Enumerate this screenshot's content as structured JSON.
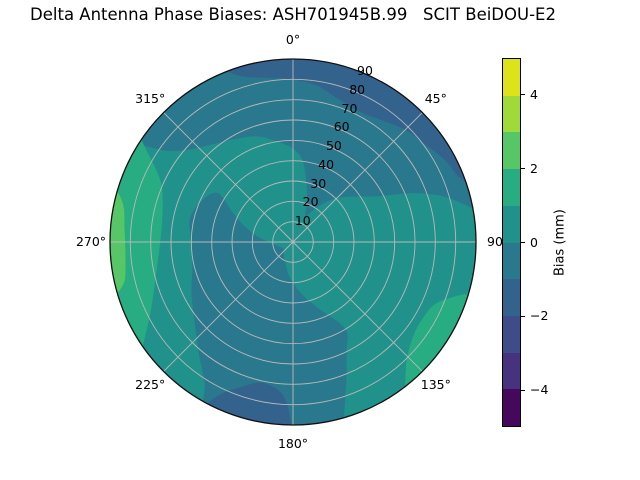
{
  "chart_data": {
    "type": "polar_contour",
    "title": "Delta Antenna Phase Biases: ASH701945B.99   SCIT BeiDOU-E2",
    "coordinate_note": "azimuth degrees clockwise from North at top; radius = zenith angle 0-90",
    "r_max": 90,
    "r_ticks": [
      10,
      20,
      30,
      40,
      50,
      60,
      70,
      80,
      90
    ],
    "r_label_azimuth_deg": 22.5,
    "theta_ticks": [
      {
        "label": "0°",
        "az": 0
      },
      {
        "label": "45°",
        "az": 45
      },
      {
        "label": "90",
        "az": 90
      },
      {
        "label": "135°",
        "az": 135
      },
      {
        "label": "180°",
        "az": 180
      },
      {
        "label": "225°",
        "az": 225
      },
      {
        "label": "270°",
        "az": 270
      },
      {
        "label": "315°",
        "az": 315
      }
    ],
    "colorbar": {
      "label": "Bias (mm)",
      "range": [
        -5,
        5
      ],
      "ticks": [
        4,
        2,
        0,
        -2,
        -4
      ],
      "bands_top_to_bottom": [
        {
          "range": [
            4,
            5
          ],
          "color": "#dde318"
        },
        {
          "range": [
            3,
            4
          ],
          "color": "#9fda3a"
        },
        {
          "range": [
            2,
            3
          ],
          "color": "#56c667"
        },
        {
          "range": [
            1,
            2
          ],
          "color": "#27ad81"
        },
        {
          "range": [
            0,
            1
          ],
          "color": "#21918c"
        },
        {
          "range": [
            -1,
            0
          ],
          "color": "#2a788e"
        },
        {
          "range": [
            -2,
            -1
          ],
          "color": "#33638d"
        },
        {
          "range": [
            -3,
            -2
          ],
          "color": "#3e4c8a"
        },
        {
          "range": [
            -4,
            -3
          ],
          "color": "#46327e"
        },
        {
          "range": [
            -5,
            -4
          ],
          "color": "#46085c"
        }
      ]
    },
    "base_band": {
      "range": [
        0,
        1
      ],
      "color": "#21918c"
    },
    "regions": [
      {
        "name": "steel-top-annulus",
        "band": [
          -1,
          0
        ],
        "color": "#2a788e",
        "pts": [
          [
            303,
            95
          ],
          [
            315,
            95
          ],
          [
            327,
            95
          ],
          [
            339,
            95
          ],
          [
            351,
            95
          ],
          [
            3,
            95
          ],
          [
            15,
            95
          ],
          [
            27,
            95
          ],
          [
            39,
            95
          ],
          [
            51,
            95
          ],
          [
            63,
            95
          ],
          [
            75,
            95
          ],
          [
            82,
            95
          ],
          [
            78,
            87
          ],
          [
            73,
            77
          ],
          [
            68,
            64
          ],
          [
            62,
            48
          ],
          [
            56,
            40
          ],
          [
            48,
            33
          ],
          [
            40,
            26
          ],
          [
            32,
            18
          ],
          [
            26,
            14
          ],
          [
            20,
            20
          ],
          [
            14,
            28
          ],
          [
            7,
            40
          ],
          [
            0,
            46
          ],
          [
            351,
            50
          ],
          [
            341,
            55
          ],
          [
            331,
            58
          ],
          [
            321,
            62
          ],
          [
            311,
            69
          ],
          [
            305,
            79
          ]
        ]
      },
      {
        "name": "steel-southwest-south",
        "band": [
          -1,
          0
        ],
        "color": "#2a788e",
        "pts": [
          [
            303,
            44
          ],
          [
            295,
            49
          ],
          [
            283,
            52
          ],
          [
            270,
            50
          ],
          [
            256,
            51
          ],
          [
            243,
            56
          ],
          [
            230,
            63
          ],
          [
            220,
            72
          ],
          [
            212,
            82
          ],
          [
            207,
            95
          ],
          [
            196,
            95
          ],
          [
            185,
            95
          ],
          [
            174,
            95
          ],
          [
            166,
            95
          ],
          [
            160,
            76
          ],
          [
            154,
            60
          ],
          [
            149,
            50
          ],
          [
            160,
            34
          ],
          [
            172,
            25
          ],
          [
            186,
            17
          ],
          [
            200,
            11
          ],
          [
            214,
            8
          ],
          [
            228,
            6
          ],
          [
            242,
            6
          ],
          [
            256,
            8
          ],
          [
            268,
            11
          ],
          [
            278,
            17
          ],
          [
            288,
            25
          ],
          [
            296,
            33
          ]
        ]
      },
      {
        "name": "navy-top-band",
        "band": [
          -2,
          -1
        ],
        "color": "#33638d",
        "pts": [
          [
            337,
            95
          ],
          [
            348,
            95
          ],
          [
            359,
            95
          ],
          [
            10,
            95
          ],
          [
            21,
            95
          ],
          [
            32,
            95
          ],
          [
            43,
            95
          ],
          [
            54,
            95
          ],
          [
            65,
            95
          ],
          [
            73,
            95
          ],
          [
            69,
            88
          ],
          [
            62,
            85
          ],
          [
            54,
            81
          ],
          [
            45,
            78
          ],
          [
            36,
            74
          ],
          [
            27,
            72
          ],
          [
            17,
            74
          ],
          [
            8,
            78
          ],
          [
            359,
            80
          ],
          [
            350,
            82
          ],
          [
            342,
            86
          ]
        ]
      },
      {
        "name": "navy-bottom-blob",
        "band": [
          -2,
          -1
        ],
        "color": "#33638d",
        "pts": [
          [
            181,
            95
          ],
          [
            190,
            95
          ],
          [
            199,
            95
          ],
          [
            208,
            95
          ],
          [
            206,
            84
          ],
          [
            200,
            76
          ],
          [
            193,
            71
          ],
          [
            186,
            73
          ],
          [
            182,
            80
          ]
        ]
      },
      {
        "name": "green-west-band",
        "band": [
          1,
          2
        ],
        "color": "#27ad81",
        "pts": [
          [
            234,
            95
          ],
          [
            247,
            95
          ],
          [
            260,
            95
          ],
          [
            273,
            95
          ],
          [
            286,
            95
          ],
          [
            297,
            95
          ],
          [
            305,
            95
          ],
          [
            302,
            85
          ],
          [
            295,
            72
          ],
          [
            287,
            67
          ],
          [
            277,
            65
          ],
          [
            266,
            66
          ],
          [
            255,
            70
          ],
          [
            246,
            76
          ],
          [
            239,
            84
          ]
        ]
      },
      {
        "name": "green-bright-west-sliver",
        "band": [
          2,
          3
        ],
        "color": "#56c667",
        "pts": [
          [
            253,
            95
          ],
          [
            262,
            95
          ],
          [
            272,
            95
          ],
          [
            281,
            95
          ],
          [
            288,
            95
          ],
          [
            283,
            86
          ],
          [
            274,
            83
          ],
          [
            263,
            83
          ],
          [
            256,
            86
          ]
        ]
      },
      {
        "name": "green-southeast-patch",
        "band": [
          1,
          2
        ],
        "color": "#27ad81",
        "pts": [
          [
            106,
            95
          ],
          [
            118,
            95
          ],
          [
            130,
            95
          ],
          [
            143,
            95
          ],
          [
            138,
            83
          ],
          [
            130,
            76
          ],
          [
            121,
            74
          ],
          [
            112,
            78
          ]
        ]
      }
    ]
  }
}
